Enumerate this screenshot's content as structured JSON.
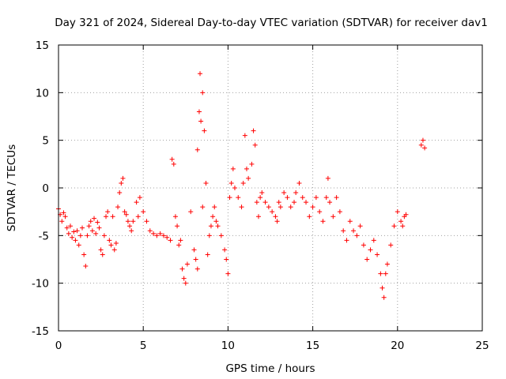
{
  "chart_data": {
    "type": "scatter",
    "title": "Day 321 of 2024, Sidereal Day-to-day VTEC variation (SDTVAR) for receiver dav1",
    "xlabel": "GPS time / hours",
    "ylabel": "SDTVAR / TECUs",
    "xlim": [
      0,
      25
    ],
    "ylim": [
      -15,
      15
    ],
    "xticks": [
      0,
      5,
      10,
      15,
      20,
      25
    ],
    "yticks": [
      -15,
      -10,
      -5,
      0,
      5,
      10,
      15
    ],
    "xtick_labels": [
      "0",
      "5",
      "10",
      "15",
      "20",
      "25"
    ],
    "ytick_labels": [
      "-15",
      "-10",
      "-5",
      "0",
      "5",
      "10",
      "15"
    ],
    "grid": true,
    "marker": "+",
    "series": [
      {
        "name": "SDTVAR",
        "color": "#ff0000",
        "points": [
          [
            0.0,
            -2.2
          ],
          [
            0.1,
            -2.8
          ],
          [
            0.2,
            -3.5
          ],
          [
            0.3,
            -2.6
          ],
          [
            0.4,
            -3.0
          ],
          [
            0.5,
            -4.2
          ],
          [
            0.6,
            -4.8
          ],
          [
            0.7,
            -4.0
          ],
          [
            0.8,
            -5.2
          ],
          [
            0.9,
            -4.6
          ],
          [
            1.0,
            -5.5
          ],
          [
            1.1,
            -4.5
          ],
          [
            1.2,
            -6.0
          ],
          [
            1.3,
            -5.0
          ],
          [
            1.4,
            -4.2
          ],
          [
            1.5,
            -7.0
          ],
          [
            1.6,
            -8.2
          ],
          [
            1.7,
            -5.0
          ],
          [
            1.8,
            -4.0
          ],
          [
            1.9,
            -3.5
          ],
          [
            2.0,
            -4.5
          ],
          [
            2.1,
            -3.2
          ],
          [
            2.2,
            -4.8
          ],
          [
            2.3,
            -3.6
          ],
          [
            2.4,
            -4.2
          ],
          [
            2.5,
            -6.5
          ],
          [
            2.6,
            -7.0
          ],
          [
            2.7,
            -5.0
          ],
          [
            2.8,
            -3.0
          ],
          [
            2.9,
            -2.5
          ],
          [
            3.0,
            -5.5
          ],
          [
            3.1,
            -6.0
          ],
          [
            3.2,
            -3.0
          ],
          [
            3.3,
            -6.5
          ],
          [
            3.4,
            -5.8
          ],
          [
            3.5,
            -2.0
          ],
          [
            3.6,
            -0.5
          ],
          [
            3.7,
            0.5
          ],
          [
            3.8,
            1.0
          ],
          [
            3.9,
            -2.5
          ],
          [
            4.0,
            -2.8
          ],
          [
            4.1,
            -3.5
          ],
          [
            4.2,
            -4.0
          ],
          [
            4.3,
            -4.5
          ],
          [
            4.4,
            -3.5
          ],
          [
            4.6,
            -1.5
          ],
          [
            4.7,
            -3.0
          ],
          [
            4.8,
            -1.0
          ],
          [
            5.0,
            -2.5
          ],
          [
            5.2,
            -3.5
          ],
          [
            5.4,
            -4.5
          ],
          [
            5.6,
            -4.8
          ],
          [
            5.8,
            -5.0
          ],
          [
            6.0,
            -4.8
          ],
          [
            6.2,
            -5.0
          ],
          [
            6.4,
            -5.2
          ],
          [
            6.6,
            -5.5
          ],
          [
            6.7,
            3.0
          ],
          [
            6.8,
            2.5
          ],
          [
            6.9,
            -3.0
          ],
          [
            7.0,
            -4.0
          ],
          [
            7.1,
            -6.0
          ],
          [
            7.2,
            -5.5
          ],
          [
            7.3,
            -8.5
          ],
          [
            7.4,
            -9.5
          ],
          [
            7.5,
            -10.0
          ],
          [
            7.6,
            -8.0
          ],
          [
            7.8,
            -2.5
          ],
          [
            8.0,
            -6.5
          ],
          [
            8.1,
            -7.5
          ],
          [
            8.2,
            -8.5
          ],
          [
            8.2,
            4.0
          ],
          [
            8.3,
            8.0
          ],
          [
            8.35,
            12.0
          ],
          [
            8.4,
            7.0
          ],
          [
            8.5,
            10.0
          ],
          [
            8.5,
            -2.0
          ],
          [
            8.6,
            6.0
          ],
          [
            8.7,
            0.5
          ],
          [
            8.8,
            -7.0
          ],
          [
            8.9,
            -5.0
          ],
          [
            9.0,
            -4.0
          ],
          [
            9.1,
            -3.0
          ],
          [
            9.2,
            -2.0
          ],
          [
            9.3,
            -3.5
          ],
          [
            9.4,
            -4.0
          ],
          [
            9.6,
            -5.0
          ],
          [
            9.8,
            -6.5
          ],
          [
            9.9,
            -7.5
          ],
          [
            10.0,
            -9.0
          ],
          [
            10.1,
            -1.0
          ],
          [
            10.2,
            0.5
          ],
          [
            10.3,
            2.0
          ],
          [
            10.4,
            0.0
          ],
          [
            10.6,
            -1.0
          ],
          [
            10.8,
            -2.0
          ],
          [
            10.9,
            0.5
          ],
          [
            11.0,
            5.5
          ],
          [
            11.1,
            2.0
          ],
          [
            11.2,
            1.0
          ],
          [
            11.4,
            2.5
          ],
          [
            11.5,
            6.0
          ],
          [
            11.6,
            4.5
          ],
          [
            11.7,
            -1.5
          ],
          [
            11.8,
            -3.0
          ],
          [
            11.9,
            -1.0
          ],
          [
            12.0,
            -0.5
          ],
          [
            12.2,
            -1.5
          ],
          [
            12.4,
            -2.0
          ],
          [
            12.6,
            -2.5
          ],
          [
            12.8,
            -3.0
          ],
          [
            12.9,
            -3.5
          ],
          [
            13.0,
            -1.5
          ],
          [
            13.1,
            -2.0
          ],
          [
            13.3,
            -0.5
          ],
          [
            13.5,
            -1.0
          ],
          [
            13.7,
            -2.0
          ],
          [
            13.9,
            -1.5
          ],
          [
            14.0,
            -0.5
          ],
          [
            14.2,
            0.5
          ],
          [
            14.4,
            -1.0
          ],
          [
            14.6,
            -1.5
          ],
          [
            14.8,
            -3.0
          ],
          [
            15.0,
            -2.0
          ],
          [
            15.2,
            -1.0
          ],
          [
            15.4,
            -2.5
          ],
          [
            15.6,
            -3.5
          ],
          [
            15.8,
            -1.0
          ],
          [
            15.9,
            1.0
          ],
          [
            16.0,
            -1.5
          ],
          [
            16.2,
            -3.0
          ],
          [
            16.4,
            -1.0
          ],
          [
            16.6,
            -2.5
          ],
          [
            16.8,
            -4.5
          ],
          [
            17.0,
            -5.5
          ],
          [
            17.2,
            -3.5
          ],
          [
            17.4,
            -4.5
          ],
          [
            17.6,
            -5.0
          ],
          [
            17.8,
            -4.0
          ],
          [
            18.0,
            -6.0
          ],
          [
            18.2,
            -7.5
          ],
          [
            18.4,
            -6.5
          ],
          [
            18.6,
            -5.5
          ],
          [
            18.8,
            -7.0
          ],
          [
            19.0,
            -9.0
          ],
          [
            19.1,
            -10.5
          ],
          [
            19.2,
            -11.5
          ],
          [
            19.3,
            -9.0
          ],
          [
            19.4,
            -8.0
          ],
          [
            19.6,
            -6.0
          ],
          [
            19.8,
            -4.0
          ],
          [
            20.0,
            -2.5
          ],
          [
            20.2,
            -3.5
          ],
          [
            20.3,
            -4.0
          ],
          [
            20.4,
            -3.0
          ],
          [
            20.5,
            -2.8
          ],
          [
            21.4,
            4.5
          ],
          [
            21.5,
            5.0
          ],
          [
            21.6,
            4.2
          ]
        ]
      }
    ]
  }
}
